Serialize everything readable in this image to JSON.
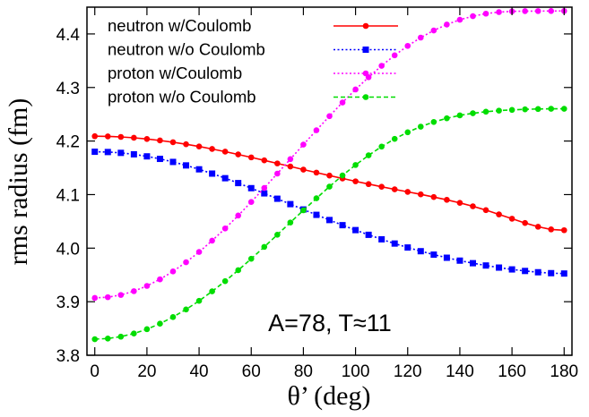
{
  "chart_data": {
    "type": "line",
    "xlabel": "θ’ (deg)",
    "ylabel": "rms radius (fm)",
    "xlim": [
      -3,
      183
    ],
    "ylim": [
      3.8,
      4.45
    ],
    "xticks": [
      "0",
      "20",
      "40",
      "60",
      "80",
      "100",
      "120",
      "140",
      "160",
      "180"
    ],
    "yticks": [
      "3.8",
      "3.9",
      "4.0",
      "4.1",
      "4.2",
      "4.3",
      "4.4"
    ],
    "annotation": "A=78, T≈11",
    "legend_position": "top-left",
    "grid": false,
    "x": [
      0,
      5,
      10,
      15,
      20,
      25,
      30,
      35,
      40,
      45,
      50,
      55,
      60,
      65,
      70,
      75,
      80,
      85,
      90,
      95,
      100,
      105,
      110,
      115,
      120,
      125,
      130,
      135,
      140,
      145,
      150,
      155,
      160,
      165,
      170,
      175,
      180
    ],
    "series": [
      {
        "name": "neutron w/Coulomb",
        "color": "#ff0000",
        "line_style": "solid",
        "marker": "circle",
        "values": [
          4.209,
          4.2087,
          4.2077,
          4.2061,
          4.2039,
          4.2011,
          4.1978,
          4.194,
          4.1898,
          4.1852,
          4.1802,
          4.175,
          4.1695,
          4.1639,
          4.1582,
          4.1525,
          4.1467,
          4.1411,
          4.1355,
          4.1301,
          4.1248,
          4.1196,
          4.1146,
          4.1098,
          4.1051,
          4.1004,
          4.0955,
          4.0903,
          4.0846,
          4.0782,
          4.071,
          4.063,
          4.055,
          4.047,
          4.04,
          4.035,
          4.0335
        ]
      },
      {
        "name": "neutron w/o Coulomb",
        "color": "#0000ff",
        "line_style": "dotted",
        "marker": "square",
        "values": [
          4.18,
          4.1795,
          4.1779,
          4.1752,
          4.1714,
          4.1667,
          4.161,
          4.1545,
          4.1472,
          4.1392,
          4.1306,
          4.1215,
          4.112,
          4.1023,
          4.0923,
          4.0822,
          4.0722,
          4.0622,
          4.0525,
          4.0429,
          4.0337,
          4.0249,
          4.0165,
          4.0086,
          4.0012,
          3.9943,
          3.9879,
          3.9821,
          3.9767,
          3.9719,
          3.9676,
          3.9637,
          3.9603,
          3.9574,
          3.955,
          3.9533,
          3.9526
        ]
      },
      {
        "name": "proton  w/Coulomb",
        "color": "#ff00ff",
        "line_style": "dotted",
        "marker": "circle",
        "values": [
          3.907,
          3.9084,
          3.9126,
          3.9197,
          3.9295,
          3.9418,
          3.9566,
          3.9737,
          3.9929,
          4.014,
          4.0367,
          4.0609,
          4.0862,
          4.1124,
          4.1392,
          4.1663,
          4.1934,
          4.2202,
          4.2465,
          4.272,
          4.2963,
          4.3192,
          4.3405,
          4.3601,
          4.3777,
          4.3932,
          4.4065,
          4.4176,
          4.4265,
          4.4332,
          4.4379,
          4.4408,
          4.4422,
          4.4426,
          4.4427,
          4.4428,
          4.4429
        ]
      },
      {
        "name": "proton  w/o Coulomb",
        "color": "#00dd00",
        "line_style": "dashed",
        "marker": "circle",
        "values": [
          3.83,
          3.8312,
          3.8347,
          3.8406,
          3.8487,
          3.859,
          3.8713,
          3.8856,
          3.9016,
          3.9193,
          3.9384,
          3.9588,
          3.9802,
          4.0024,
          4.025,
          4.0479,
          4.0707,
          4.0931,
          4.1149,
          4.1357,
          4.1553,
          4.1733,
          4.1896,
          4.204,
          4.2164,
          4.2269,
          4.2356,
          4.2425,
          4.2479,
          4.2519,
          4.2548,
          4.2568,
          4.2582,
          4.2592,
          4.2598,
          4.2602,
          4.2603
        ]
      }
    ]
  }
}
